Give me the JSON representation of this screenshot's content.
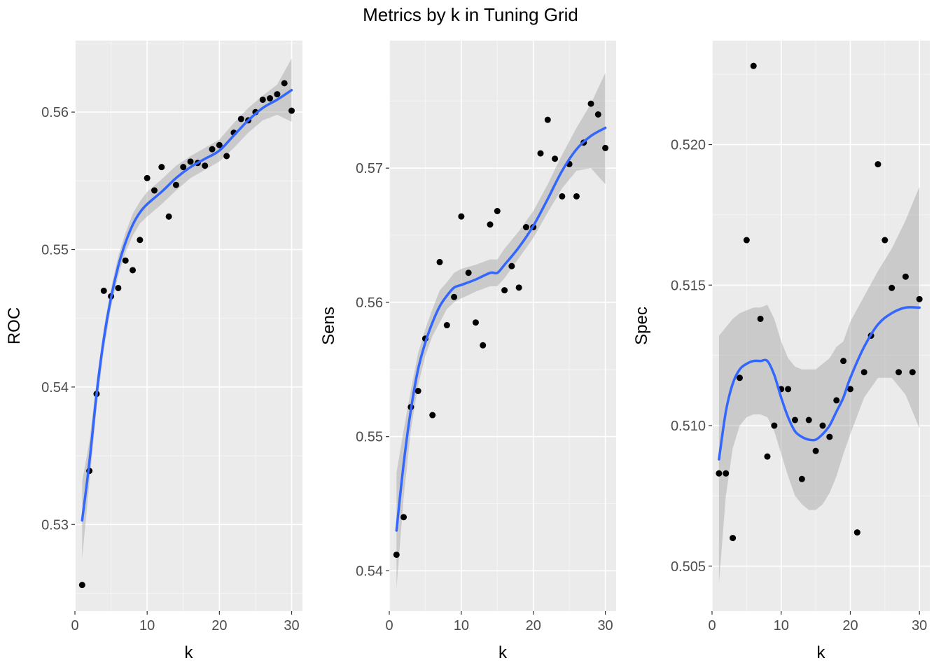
{
  "title": "Metrics by k in Tuning Grid",
  "colors": {
    "panel_bg": "#EBEBEB",
    "grid_major": "#FFFFFF",
    "points": "#000000",
    "smooth_line": "#3366FF",
    "ribbon": "#999999"
  },
  "chart_data": [
    {
      "type": "scatter",
      "xlabel": "k",
      "ylabel": "ROC",
      "xlim": [
        0,
        31.5
      ],
      "ylim": [
        0.5237,
        0.5652
      ],
      "xticks": [
        0,
        10,
        20,
        30
      ],
      "yticks": [
        0.53,
        0.54,
        0.55,
        0.56
      ],
      "yticklabels": [
        "0.53",
        "0.54",
        "0.55",
        "0.56"
      ],
      "grid": true,
      "x": [
        1,
        2,
        3,
        4,
        5,
        6,
        7,
        8,
        9,
        10,
        11,
        12,
        13,
        14,
        15,
        16,
        17,
        18,
        19,
        20,
        21,
        22,
        23,
        24,
        25,
        26,
        27,
        28,
        29,
        30
      ],
      "y": [
        0.5256,
        0.5339,
        0.5395,
        0.547,
        0.5466,
        0.5472,
        0.5492,
        0.5485,
        0.5507,
        0.5552,
        0.5543,
        0.556,
        0.5524,
        0.5547,
        0.556,
        0.5564,
        0.5563,
        0.5561,
        0.5573,
        0.5576,
        0.5568,
        0.5585,
        0.5595,
        0.5594,
        0.56,
        0.5609,
        0.561,
        0.5613,
        0.5621,
        0.5601
      ],
      "smooth": {
        "x": [
          1,
          2,
          3,
          4,
          5,
          6,
          7,
          8,
          9,
          10,
          12,
          14,
          16,
          18,
          20,
          22,
          24,
          26,
          28,
          30
        ],
        "y": [
          0.5303,
          0.5345,
          0.5395,
          0.5435,
          0.5465,
          0.5488,
          0.5505,
          0.5518,
          0.5527,
          0.5533,
          0.5542,
          0.5552,
          0.556,
          0.5566,
          0.5572,
          0.5583,
          0.5594,
          0.5603,
          0.5609,
          0.5616
        ],
        "lower": [
          0.5275,
          0.533,
          0.5385,
          0.5427,
          0.5458,
          0.5481,
          0.5498,
          0.551,
          0.5519,
          0.5524,
          0.5533,
          0.5543,
          0.5552,
          0.5558,
          0.5564,
          0.5574,
          0.5585,
          0.5594,
          0.5598,
          0.5593
        ],
        "upper": [
          0.5331,
          0.536,
          0.5405,
          0.5443,
          0.5472,
          0.5495,
          0.5512,
          0.5526,
          0.5535,
          0.5542,
          0.5551,
          0.5561,
          0.5568,
          0.5574,
          0.558,
          0.5592,
          0.5603,
          0.5612,
          0.562,
          0.5639
        ]
      }
    },
    {
      "type": "scatter",
      "xlabel": "k",
      "ylabel": "Sens",
      "xlim": [
        0,
        31.5
      ],
      "ylim": [
        0.537,
        0.5795
      ],
      "xticks": [
        0,
        10,
        20,
        30
      ],
      "yticks": [
        0.54,
        0.55,
        0.56,
        0.57
      ],
      "yticklabels": [
        "0.54",
        "0.55",
        "0.56",
        "0.57"
      ],
      "grid": true,
      "x": [
        1,
        2,
        3,
        4,
        5,
        6,
        7,
        8,
        9,
        10,
        11,
        12,
        13,
        14,
        15,
        16,
        17,
        18,
        19,
        20,
        21,
        22,
        23,
        24,
        25,
        26,
        27,
        28,
        29,
        30
      ],
      "y": [
        0.5412,
        0.544,
        0.5522,
        0.5534,
        0.5573,
        0.5516,
        0.563,
        0.5583,
        0.5604,
        0.5664,
        0.5622,
        0.5585,
        0.5568,
        0.5658,
        0.5668,
        0.5609,
        0.5627,
        0.5611,
        0.5656,
        0.5656,
        0.5711,
        0.5736,
        0.5707,
        0.5679,
        0.5703,
        0.5679,
        0.5719,
        0.5748,
        0.574,
        0.5715
      ],
      "smooth": {
        "x": [
          1,
          2,
          3,
          4,
          5,
          6,
          7,
          8,
          9,
          10,
          12,
          14,
          15,
          16,
          18,
          20,
          22,
          24,
          26,
          28,
          30
        ],
        "y": [
          0.543,
          0.548,
          0.552,
          0.555,
          0.557,
          0.5585,
          0.5597,
          0.5605,
          0.5611,
          0.5613,
          0.5617,
          0.5622,
          0.5622,
          0.5628,
          0.5641,
          0.5657,
          0.5677,
          0.5698,
          0.5714,
          0.5724,
          0.573
        ],
        "lower": [
          0.5387,
          0.5455,
          0.5505,
          0.5538,
          0.556,
          0.5575,
          0.5585,
          0.5595,
          0.56,
          0.5603,
          0.5608,
          0.5612,
          0.5612,
          0.5618,
          0.5633,
          0.5648,
          0.5667,
          0.5685,
          0.5698,
          0.57,
          0.5688
        ],
        "upper": [
          0.5473,
          0.5505,
          0.5535,
          0.5562,
          0.558,
          0.5595,
          0.5609,
          0.5615,
          0.5622,
          0.5625,
          0.5628,
          0.5632,
          0.5632,
          0.564,
          0.5653,
          0.5668,
          0.5688,
          0.571,
          0.573,
          0.5748,
          0.5771
        ]
      }
    },
    {
      "type": "scatter",
      "xlabel": "k",
      "ylabel": "Spec",
      "xlim": [
        0,
        31.5
      ],
      "ylim": [
        0.5034,
        0.5237
      ],
      "xticks": [
        0,
        10,
        20,
        30
      ],
      "yticks": [
        0.505,
        0.51,
        0.515,
        0.52
      ],
      "yticklabels": [
        "0.505",
        "0.510",
        "0.515",
        "0.520"
      ],
      "grid": true,
      "x": [
        1,
        2,
        3,
        4,
        5,
        6,
        7,
        8,
        9,
        10,
        11,
        12,
        13,
        14,
        15,
        16,
        17,
        18,
        19,
        20,
        21,
        22,
        23,
        24,
        25,
        26,
        27,
        28,
        29,
        30
      ],
      "y": [
        0.5083,
        0.5083,
        0.506,
        0.5117,
        0.5166,
        0.5228,
        0.5138,
        0.5089,
        0.51,
        0.5113,
        0.5113,
        0.5102,
        0.5081,
        0.5102,
        0.5091,
        0.51,
        0.5096,
        0.5109,
        0.5123,
        0.5113,
        0.5062,
        0.5119,
        0.5132,
        0.5193,
        0.5166,
        0.5149,
        0.5119,
        0.5153,
        0.5119,
        0.5145
      ],
      "smooth": {
        "x": [
          1,
          2,
          3,
          4,
          5,
          6,
          7,
          8,
          9,
          10,
          11,
          12,
          13,
          14,
          15,
          16,
          17,
          18,
          19,
          20,
          22,
          24,
          26,
          28,
          30
        ],
        "y": [
          0.5088,
          0.5105,
          0.5115,
          0.512,
          0.5122,
          0.5123,
          0.5123,
          0.5123,
          0.5118,
          0.511,
          0.5103,
          0.5098,
          0.5096,
          0.5095,
          0.5095,
          0.5097,
          0.51,
          0.5105,
          0.511,
          0.5117,
          0.5128,
          0.5136,
          0.514,
          0.5142,
          0.5142
        ],
        "lower": [
          0.5044,
          0.5075,
          0.5092,
          0.51,
          0.5103,
          0.5104,
          0.5104,
          0.5103,
          0.5098,
          0.509,
          0.5082,
          0.5075,
          0.5072,
          0.507,
          0.507,
          0.5072,
          0.5076,
          0.5082,
          0.509,
          0.5097,
          0.511,
          0.5117,
          0.5117,
          0.5111,
          0.5099
        ],
        "upper": [
          0.5132,
          0.5135,
          0.5138,
          0.514,
          0.5141,
          0.5142,
          0.5142,
          0.5143,
          0.5138,
          0.513,
          0.5124,
          0.5121,
          0.512,
          0.512,
          0.512,
          0.5122,
          0.5124,
          0.5128,
          0.513,
          0.5137,
          0.5146,
          0.5155,
          0.5163,
          0.5173,
          0.5185
        ]
      }
    }
  ]
}
